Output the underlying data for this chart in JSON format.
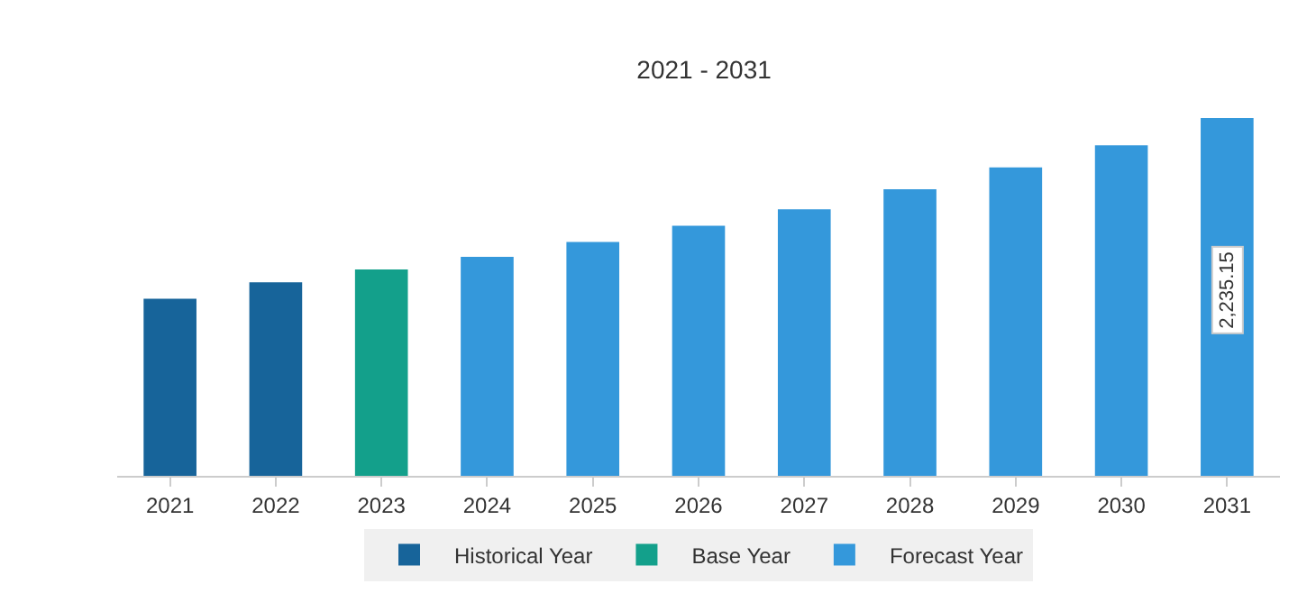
{
  "chart_data": {
    "type": "bar",
    "title": "2021 - 2031",
    "categories": [
      "2021",
      "2022",
      "2023",
      "2024",
      "2025",
      "2026",
      "2027",
      "2028",
      "2029",
      "2030",
      "2031"
    ],
    "series": [
      {
        "name": "Historical Year",
        "color": "#17649a",
        "values": [
          1106,
          1209,
          null,
          null,
          null,
          null,
          null,
          null,
          null,
          null,
          null
        ]
      },
      {
        "name": "Base Year",
        "color": "#13a08b",
        "values": [
          null,
          null,
          1289,
          null,
          null,
          null,
          null,
          null,
          null,
          null,
          null
        ]
      },
      {
        "name": "Forecast Year",
        "color": "#3498db",
        "values": [
          null,
          null,
          null,
          1368,
          1460,
          1562,
          1665,
          1790,
          1927,
          2064,
          2235.15
        ],
        "value_labels": [
          null,
          null,
          null,
          null,
          null,
          null,
          null,
          null,
          null,
          null,
          "2,235.15"
        ]
      }
    ],
    "grid": false,
    "legend": "bottom"
  }
}
